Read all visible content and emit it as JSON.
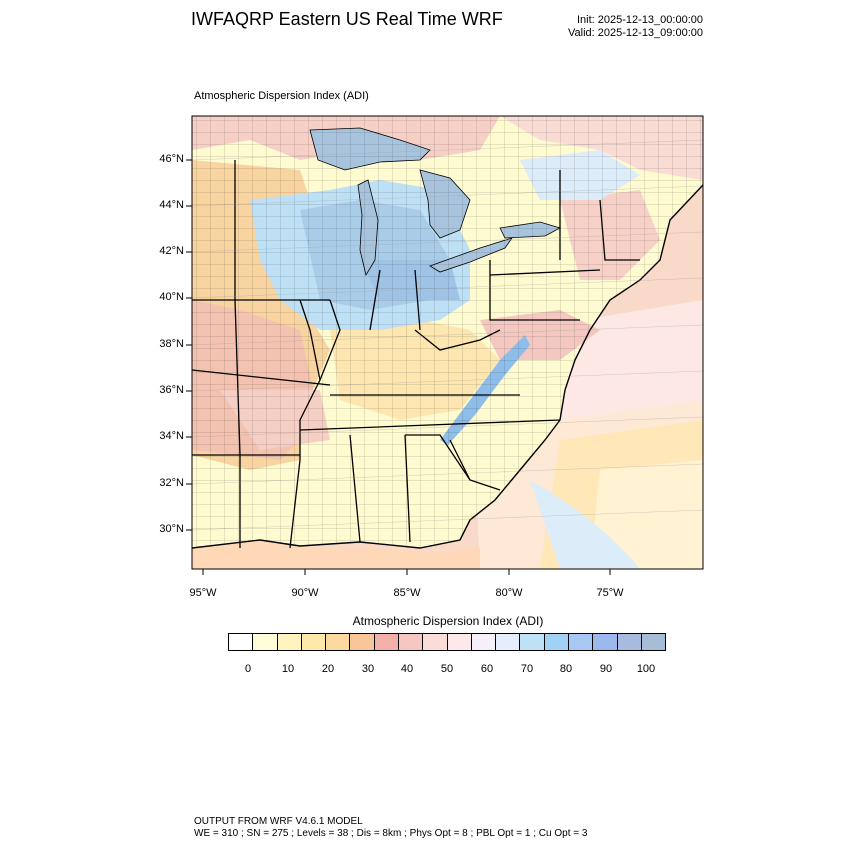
{
  "header": {
    "title": "IWFAQRP Eastern US Real Time WRF",
    "init": "Init: 2025-12-13_00:00:00",
    "valid": "Valid: 2025-12-13_09:00:00"
  },
  "map": {
    "subtitle": "Atmospheric Dispersion Index   (ADI)",
    "lat_labels": [
      "46°N",
      "44°N",
      "42°N",
      "40°N",
      "38°N",
      "36°N",
      "34°N",
      "32°N",
      "30°N"
    ],
    "lon_labels": [
      "95°W",
      "90°W",
      "85°W",
      "80°W",
      "75°W"
    ],
    "colors": {
      "water": "#a8c4dd",
      "land_low": "#fffbd0",
      "land_mid": "#f7d4a0",
      "land_high": "#a9cde9",
      "border": "#000000"
    }
  },
  "legend": {
    "title": "Atmospheric Dispersion Index  (ADI)",
    "tick_labels": [
      "0",
      "10",
      "20",
      "30",
      "40",
      "50",
      "60",
      "70",
      "80",
      "90",
      "100"
    ],
    "colors": [
      "#ffffff",
      "#fffcd8",
      "#fff4c0",
      "#ffe8a8",
      "#fcd9a0",
      "#f9c69a",
      "#f2b0a8",
      "#f6c6c0",
      "#fbdcd8",
      "#fde9ec",
      "#f6f0fa",
      "#e4eefc",
      "#bde2f7",
      "#9fd2f5",
      "#a6c8f2",
      "#9db8ec",
      "#a7bbe0",
      "#a7bdd6"
    ]
  },
  "footer": {
    "line1": "OUTPUT FROM WRF V4.6.1 MODEL",
    "line2": "WE = 310 ; SN = 275 ; Levels = 38 ; Dis = 8km ; Phys Opt = 8 ; PBL Opt = 1 ; Cu Opt = 3"
  }
}
